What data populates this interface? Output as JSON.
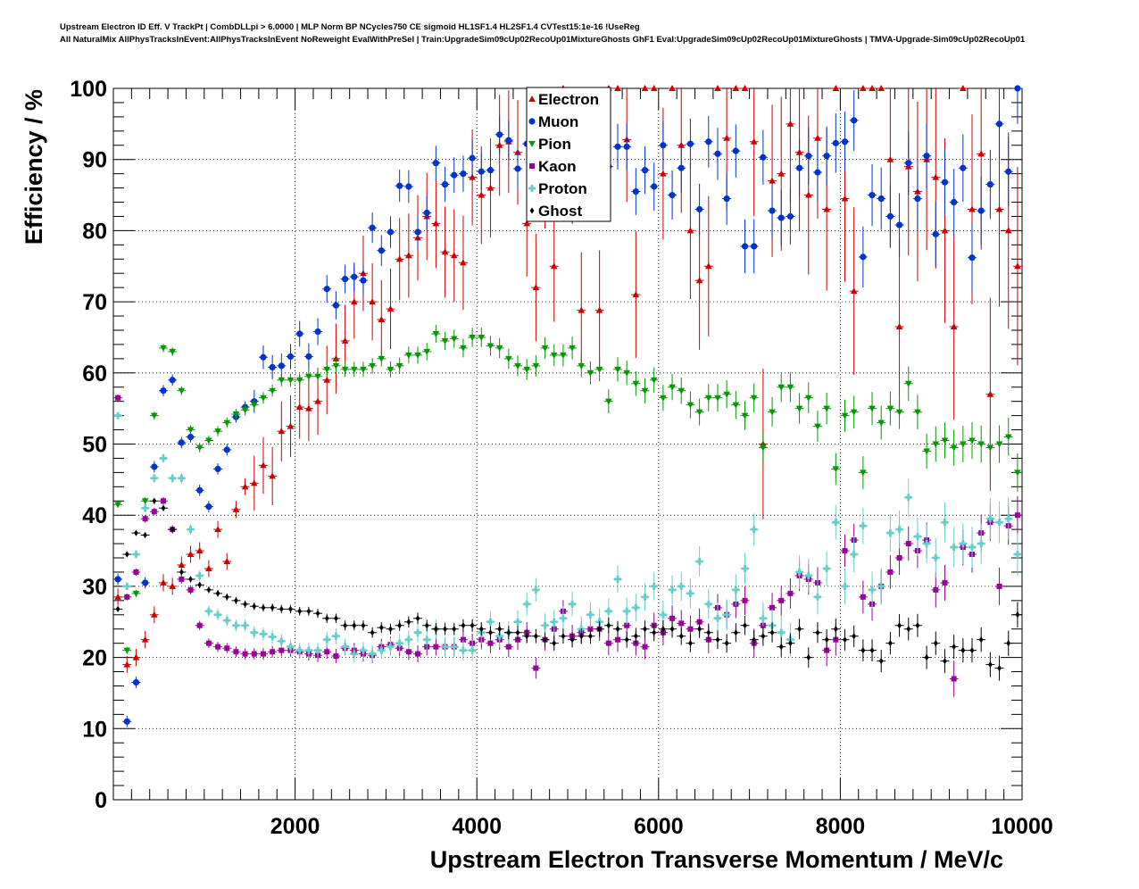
{
  "header": {
    "title_line1": "Upstream Electron ID Eff. V TrackPt | CombDLLpi > 6.0000 | MLP Norm BP NCycles750 CE sigmoid HL1SF1.4 HL2SF1.4 CVTest15:1e-16 !UseReg",
    "title_line2": "All NaturalMix AllPhysTracksInEvent:AllPhysTracksInEvent NoReweight EvalWithPreSel | Train:UpgradeSim09cUp02RecoUp01MixtureGhosts GhF1 Eval:UpgradeSim09cUp02RecoUp01MixtureGhosts | TMVA-Upgrade-Sim09cUp02RecoUp01"
  },
  "chart_data": {
    "type": "scatter",
    "xlabel": "Upstream Electron Transverse Momentum / MeV/c",
    "ylabel": "Efficiency / %",
    "xlim": [
      0,
      10000
    ],
    "ylim": [
      0,
      100
    ],
    "x_ticks": [
      2000,
      4000,
      6000,
      8000,
      10000
    ],
    "y_ticks": [
      0,
      10,
      20,
      30,
      40,
      50,
      60,
      70,
      80,
      90,
      100
    ],
    "grid": true,
    "legend_position": "top-center",
    "x": [
      50,
      150,
      250,
      350,
      450,
      550,
      650,
      750,
      850,
      950,
      1050,
      1150,
      1250,
      1350,
      1450,
      1550,
      1650,
      1750,
      1850,
      1950,
      2050,
      2150,
      2250,
      2350,
      2450,
      2550,
      2650,
      2750,
      2850,
      2950,
      3050,
      3150,
      3250,
      3350,
      3450,
      3550,
      3650,
      3750,
      3850,
      3950,
      4050,
      4150,
      4250,
      4350,
      4450,
      4550,
      4650,
      4750,
      4850,
      4950,
      5050,
      5150,
      5250,
      5350,
      5450,
      5550,
      5650,
      5750,
      5850,
      5950,
      6050,
      6150,
      6250,
      6350,
      6450,
      6550,
      6650,
      6750,
      6850,
      6950,
      7050,
      7150,
      7250,
      7350,
      7450,
      7550,
      7650,
      7750,
      7850,
      7950,
      8050,
      8150,
      8250,
      8350,
      8450,
      8550,
      8650,
      8750,
      8850,
      8950,
      9050,
      9150,
      9250,
      9350,
      9450,
      9550,
      9650,
      9750,
      9850,
      9950
    ],
    "series": [
      {
        "name": "Electron",
        "color": "#cc0000",
        "marker": "triangle-up",
        "values": [
          28.5,
          19,
          20,
          22.5,
          26,
          30.5,
          30,
          33,
          34.5,
          35,
          32.5,
          38,
          33.5,
          40.8,
          44,
          44.5,
          47,
          45.5,
          51.8,
          52.5,
          55.2,
          55,
          56,
          59,
          62,
          64.5,
          70,
          74,
          70,
          67.5,
          69,
          76,
          76.5,
          79,
          82,
          81,
          77,
          76.5,
          75.5,
          87.5,
          85,
          86,
          92,
          92.5,
          91,
          81,
          72,
          88,
          75,
          100,
          89,
          68.8,
          90,
          68.8,
          100,
          100,
          92.8,
          71,
          100,
          100,
          88,
          100,
          92,
          80,
          73,
          75,
          100,
          93,
          100,
          100,
          92.5,
          50,
          87,
          88,
          95,
          91,
          85,
          93,
          83,
          100,
          84.5,
          71.5,
          100,
          100,
          100,
          90,
          66.5,
          89,
          85.5,
          90,
          87.5,
          80,
          66.5,
          100,
          83,
          90.8,
          57,
          83,
          80,
          75
        ]
      },
      {
        "name": "Muon",
        "color": "#0033cc",
        "marker": "circle",
        "values": [
          31,
          11,
          16.5,
          30.5,
          46.8,
          57.5,
          59,
          50.2,
          51,
          43.5,
          41.2,
          46.5,
          49.2,
          53.8,
          55.2,
          56,
          62.2,
          60.8,
          61,
          62.3,
          65.5,
          62.3,
          65.8,
          71.8,
          69.5,
          73.2,
          73.5,
          73,
          80.4,
          77.2,
          79.8,
          86.3,
          86.2,
          79.8,
          82.5,
          89.5,
          86.5,
          87.8,
          88,
          90.2,
          88.3,
          88.5,
          93.5,
          92.7,
          88.7,
          92.2,
          89.5,
          92.2,
          92.3,
          89.5,
          89.5,
          90.5,
          91,
          90.8,
          89,
          91.8,
          91.8,
          85.5,
          88.5,
          86.2,
          92,
          85,
          88.8,
          92.2,
          83,
          92.5,
          90.8,
          84.5,
          91.2,
          77.8,
          77.8,
          90.3,
          82.8,
          81.8,
          82,
          88.8,
          90.5,
          88.2,
          90.5,
          92.3,
          92.5,
          95.5,
          76.3,
          85,
          84.5,
          82,
          80.8,
          89.5,
          84.5,
          90.5,
          79.5,
          86.8,
          84,
          88.8,
          76.2,
          82.8,
          86.5,
          95,
          88.3,
          100
        ]
      },
      {
        "name": "Pion",
        "color": "#009900",
        "marker": "triangle-down",
        "values": [
          41.5,
          21,
          29,
          42,
          54,
          63.5,
          63,
          57.5,
          52,
          49.5,
          50.5,
          51.8,
          53,
          54.2,
          54.8,
          55.5,
          56.5,
          57.5,
          59,
          59,
          59,
          59.5,
          59.5,
          60.5,
          61,
          60.5,
          60.5,
          60.5,
          61,
          62,
          60.5,
          61,
          62.5,
          62.5,
          63,
          65.5,
          64.5,
          64.8,
          63.5,
          65,
          65,
          63.8,
          63.5,
          62,
          61,
          60.5,
          61,
          63.5,
          62.5,
          62.5,
          63.5,
          61,
          60,
          60.5,
          56,
          60.5,
          60,
          58.5,
          57.5,
          59,
          56.5,
          58,
          57.5,
          55.5,
          54.5,
          56.5,
          56.5,
          57,
          55.5,
          54,
          56.5,
          49.5,
          54.5,
          58,
          58,
          55,
          56.5,
          52.5,
          55,
          46.5,
          54,
          54.5,
          46,
          55,
          53,
          55,
          54.5,
          58.5,
          54.5,
          49,
          50,
          50.5,
          49.5,
          50,
          50.5,
          50,
          49.5,
          50,
          51,
          46
        ]
      },
      {
        "name": "Kaon",
        "color": "#990099",
        "marker": "square",
        "values": [
          56.5,
          28.5,
          32,
          39.5,
          40.5,
          42,
          38,
          31,
          29.5,
          24.5,
          22,
          21.5,
          21.3,
          20.8,
          20.5,
          20.5,
          20.5,
          20.8,
          21,
          21,
          20.8,
          20.5,
          20.3,
          20.8,
          20.2,
          21.3,
          21,
          20.5,
          20.3,
          21.5,
          21.8,
          21.3,
          20.8,
          20.5,
          21.5,
          21.5,
          21.5,
          21.5,
          22.5,
          22,
          22.5,
          22,
          22.5,
          21.5,
          22.5,
          23.5,
          18.5,
          22.5,
          24,
          26.5,
          23,
          23.5,
          24,
          24,
          22,
          22.5,
          24.5,
          22,
          21.5,
          24.5,
          23.5,
          25.5,
          24.8,
          24,
          25,
          22.5,
          27,
          26,
          27.5,
          28,
          22,
          24.5,
          27,
          28,
          29,
          31.5,
          31,
          30.5,
          21,
          22.5,
          35,
          36.5,
          28.5,
          27.5,
          30,
          32,
          34,
          36,
          35,
          36.5,
          29.5,
          30.5,
          17,
          35.5,
          34.5,
          37.5,
          39,
          30,
          38.5,
          40
        ]
      },
      {
        "name": "Proton",
        "color": "#66cccc",
        "marker": "cross",
        "values": [
          54,
          30,
          34.5,
          41,
          45.2,
          48,
          45.2,
          45.2,
          38,
          31.5,
          26.5,
          26,
          25.2,
          24.5,
          24.5,
          23.5,
          23.3,
          22.9,
          22.3,
          21.5,
          21,
          21,
          21,
          22.5,
          23,
          21.5,
          20.5,
          21,
          20.5,
          21,
          21.5,
          22,
          22.5,
          23.5,
          22.5,
          24,
          21.5,
          21.5,
          21,
          21,
          23.5,
          25,
          23,
          23.5,
          25,
          27.5,
          29.5,
          24.5,
          25,
          25.5,
          27.5,
          24,
          26,
          25,
          26.5,
          31,
          26.5,
          27,
          28.5,
          30,
          26,
          29.5,
          30,
          29,
          33.5,
          27.5,
          25.5,
          26,
          29.5,
          32.5,
          38,
          25.5,
          24.5,
          23.5,
          22.5,
          32,
          31.5,
          28.5,
          32.5,
          39,
          30,
          34.5,
          38.5,
          29.5,
          30,
          37.5,
          38,
          42.5,
          37,
          36,
          34,
          39,
          35.5,
          36,
          35.5,
          36,
          39.5,
          39,
          39.5,
          34.5
        ]
      },
      {
        "name": "Ghost",
        "color": "#000000",
        "marker": "diamond",
        "values": [
          26.8,
          34.5,
          37.5,
          37.2,
          42,
          41,
          38,
          32,
          31,
          30.2,
          29.5,
          29,
          28.5,
          28,
          27.5,
          27.2,
          27,
          27,
          26.8,
          26.8,
          26.5,
          26.5,
          26.2,
          25.5,
          25.5,
          24.5,
          24.5,
          24.5,
          23.5,
          24.2,
          24,
          24.5,
          25,
          25.5,
          24.5,
          24,
          24,
          24,
          24.5,
          24.5,
          24,
          23.5,
          24,
          23.5,
          23.5,
          23,
          23,
          22.5,
          22,
          23,
          22.5,
          23,
          23,
          24,
          24.5,
          24,
          22.5,
          23,
          24,
          23.5,
          24,
          24,
          23,
          22,
          24,
          23.5,
          22.5,
          22,
          23.5,
          24.5,
          22.5,
          23,
          23.5,
          21.5,
          22,
          24,
          20,
          23.5,
          22.5,
          24,
          22.5,
          23,
          21,
          21,
          19.5,
          22,
          24.5,
          24,
          24.5,
          20,
          22,
          19.5,
          21.5,
          21,
          21,
          22.5,
          19,
          18.5,
          22,
          26
        ]
      }
    ]
  }
}
